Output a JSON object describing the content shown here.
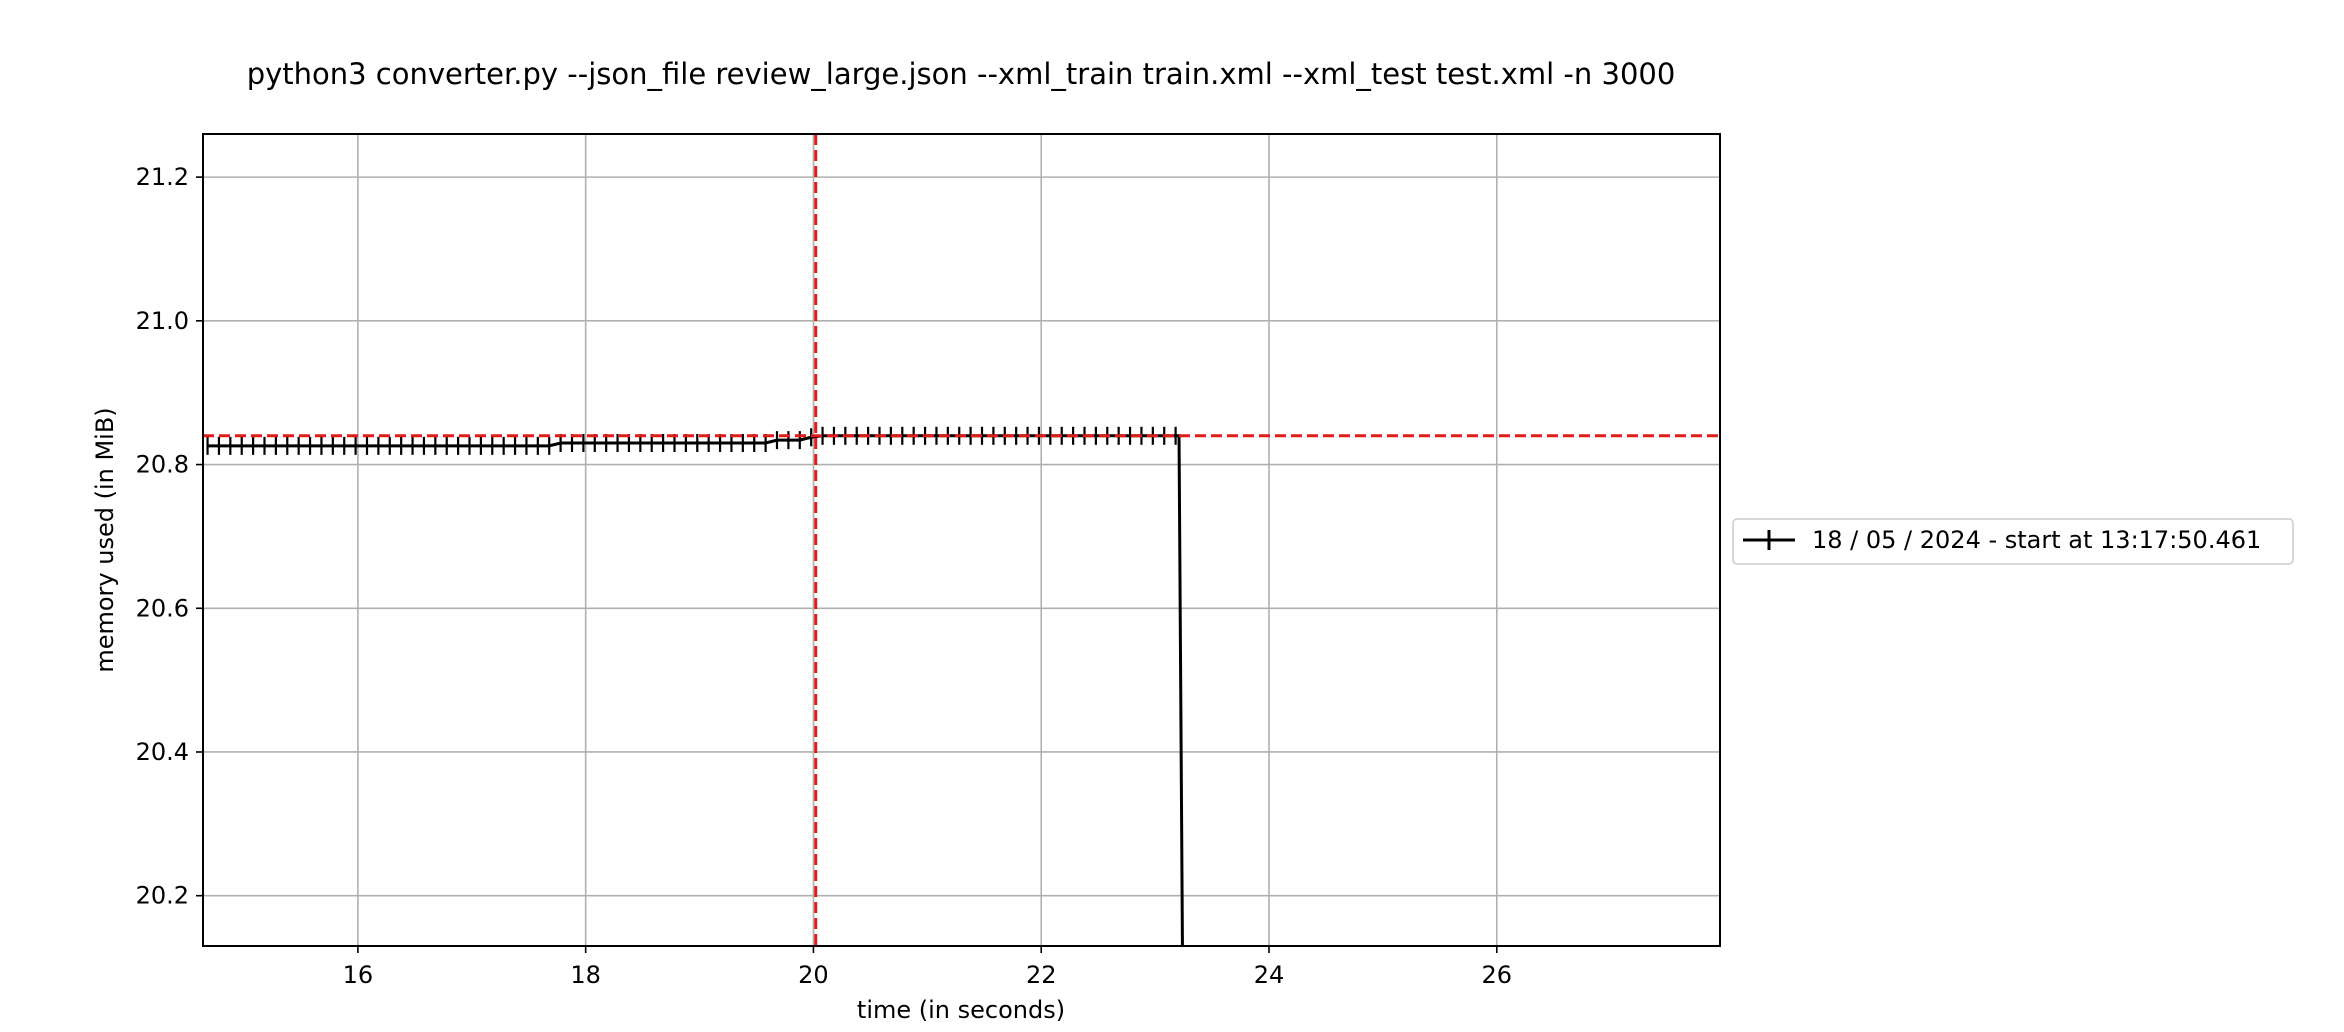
{
  "chart_data": {
    "type": "line",
    "title": "python3 converter.py --json_file review_large.json --xml_train train.xml --xml_test test.xml -n 3000",
    "xlabel": "time (in seconds)",
    "ylabel": "memory used (in MiB)",
    "xlim": [
      14.64,
      27.96
    ],
    "ylim": [
      20.13,
      21.26
    ],
    "xticks": [
      16,
      18,
      20,
      22,
      24,
      26
    ],
    "yticks": [
      20.2,
      20.4,
      20.6,
      20.8,
      21.0,
      21.2
    ],
    "xtick_labels": [
      "16",
      "18",
      "20",
      "22",
      "24",
      "26"
    ],
    "ytick_labels": [
      "20.2",
      "20.4",
      "20.6",
      "20.8",
      "21.0",
      "21.2"
    ],
    "grid": true,
    "legend_position": "center-right, outside plot",
    "series": [
      {
        "name": "18 / 05 / 2024 - start at 13:17:50.461",
        "color": "#000000",
        "marker": "+",
        "x": [
          14.68,
          14.78,
          14.88,
          14.98,
          15.08,
          15.18,
          15.28,
          15.38,
          15.48,
          15.58,
          15.68,
          15.78,
          15.88,
          15.98,
          16.08,
          16.18,
          16.28,
          16.38,
          16.48,
          16.58,
          16.68,
          16.78,
          16.88,
          16.98,
          17.08,
          17.18,
          17.28,
          17.38,
          17.48,
          17.58,
          17.68,
          17.78,
          17.88,
          17.98,
          18.08,
          18.18,
          18.28,
          18.38,
          18.48,
          18.58,
          18.68,
          18.78,
          18.88,
          18.98,
          19.08,
          19.18,
          19.28,
          19.38,
          19.48,
          19.58,
          19.68,
          19.78,
          19.88,
          19.98,
          20.08,
          20.18,
          20.28,
          20.38,
          20.48,
          20.58,
          20.68,
          20.78,
          20.88,
          20.98,
          21.08,
          21.18,
          21.28,
          21.38,
          21.48,
          21.58,
          21.68,
          21.78,
          21.88,
          21.98,
          22.08,
          22.18,
          22.28,
          22.38,
          22.48,
          22.58,
          22.68,
          22.78,
          22.88,
          22.98,
          23.08,
          23.18,
          23.21,
          23.24
        ],
        "y": [
          20.826,
          20.826,
          20.826,
          20.826,
          20.826,
          20.826,
          20.826,
          20.826,
          20.826,
          20.826,
          20.826,
          20.826,
          20.826,
          20.826,
          20.826,
          20.826,
          20.826,
          20.826,
          20.826,
          20.826,
          20.826,
          20.826,
          20.826,
          20.826,
          20.826,
          20.826,
          20.826,
          20.826,
          20.826,
          20.826,
          20.826,
          20.83,
          20.83,
          20.83,
          20.83,
          20.83,
          20.83,
          20.83,
          20.83,
          20.83,
          20.83,
          20.83,
          20.83,
          20.83,
          20.83,
          20.83,
          20.83,
          20.83,
          20.83,
          20.83,
          20.834,
          20.834,
          20.834,
          20.838,
          20.84,
          20.84,
          20.84,
          20.84,
          20.84,
          20.84,
          20.84,
          20.84,
          20.84,
          20.84,
          20.84,
          20.84,
          20.84,
          20.84,
          20.84,
          20.84,
          20.84,
          20.84,
          20.84,
          20.84,
          20.84,
          20.84,
          20.84,
          20.84,
          20.84,
          20.84,
          20.84,
          20.84,
          20.84,
          20.84,
          20.84,
          20.84,
          20.84,
          20.13
        ]
      }
    ],
    "reference_lines": [
      {
        "orientation": "horizontal",
        "y": 20.84,
        "color": "#e31a1c",
        "style": "dashed"
      },
      {
        "orientation": "vertical",
        "x": 20.02,
        "color": "#e31a1c",
        "style": "dashed"
      }
    ]
  }
}
